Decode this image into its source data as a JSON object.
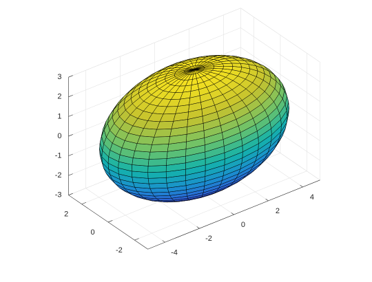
{
  "chart_data": {
    "type": "surface3d",
    "shape": "ellipsoid",
    "center": [
      0,
      0,
      0
    ],
    "radii": [
      5,
      3,
      3
    ],
    "view": [
      -37.5,
      30
    ],
    "xlim": [
      -5,
      5
    ],
    "ylim": [
      -3,
      3
    ],
    "zlim": [
      -3,
      3
    ],
    "xticks": [
      -4,
      -2,
      0,
      2,
      4
    ],
    "yticks": [
      -2,
      0,
      2
    ],
    "zticks": [
      -3,
      -2,
      -1,
      0,
      1,
      2,
      3
    ],
    "grid": true,
    "colormap": [
      "#3e26a8",
      "#2d5fd6",
      "#1a8fd0",
      "#14b3aa",
      "#6dc26a",
      "#c4c22f",
      "#f9e41f"
    ],
    "edge_color": "#000000"
  }
}
